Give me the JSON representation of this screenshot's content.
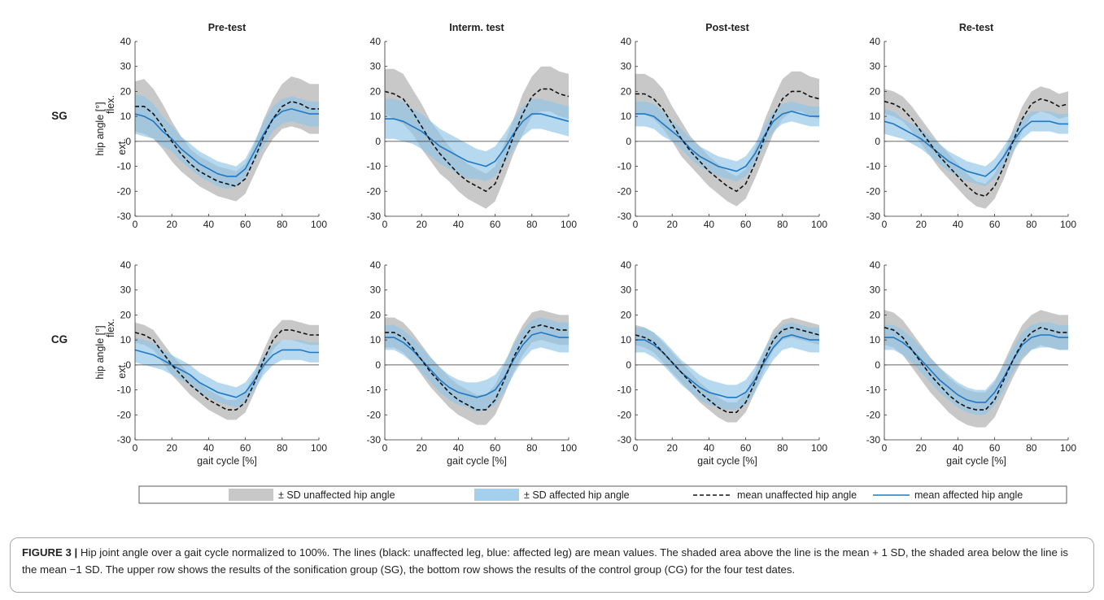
{
  "figure": {
    "caption_label": "FIGURE 3 |",
    "caption_text": "Hip joint angle over a gait cycle normalized to 100%. The lines (black: unaffected leg, blue: affected leg) are mean values. The shaded area above the line is the mean + 1 SD, the shaded area below the line is the mean −1 SD. The upper row shows the results of the sonification group (SG), the bottom row shows the results of the control group (CG) for the four test dates."
  },
  "colors": {
    "unaffected_band": "#c8c8c8",
    "affected_band": "#8fc4e8",
    "overlap_band": "#5a89ad",
    "mean_unaffected": "#111111",
    "mean_affected": "#1f78c4"
  },
  "chart_data": {
    "type": "line",
    "x": [
      0,
      5,
      10,
      15,
      20,
      25,
      30,
      35,
      40,
      45,
      50,
      55,
      60,
      65,
      70,
      75,
      80,
      85,
      90,
      95,
      100
    ],
    "xlim": [
      0,
      100
    ],
    "ylim": [
      -30,
      40
    ],
    "xticks": [
      "0",
      "20",
      "40",
      "60",
      "80",
      "100"
    ],
    "yticks": [
      "40",
      "30",
      "20",
      "10",
      "0",
      "-10",
      "-20",
      "-30"
    ],
    "xlabel": "gait cycle [%]",
    "ylabel": "hip angle [°]",
    "ylabel_flex": "flex.",
    "ylabel_ext": "ext.",
    "columns": [
      "Pre-test",
      "Interm. test",
      "Post-test",
      "Re-test"
    ],
    "rows": [
      "SG",
      "CG"
    ],
    "legend": {
      "placement": "bottom",
      "items": [
        "± SD unaffected hip angle",
        "± SD affected hip angle",
        "mean unaffected hip angle",
        "mean affected hip angle"
      ]
    },
    "panels": [
      {
        "row": "SG",
        "test": "Pre-test",
        "unaffected_mean": [
          14,
          14,
          11,
          6,
          0,
          -5,
          -9,
          -12,
          -14,
          -16,
          -17,
          -18,
          -15,
          -7,
          2,
          9,
          14,
          16,
          15,
          13,
          13
        ],
        "unaffected_sd": [
          10,
          11,
          10,
          9,
          8,
          7,
          6,
          6,
          6,
          6,
          6,
          6,
          6,
          6,
          7,
          8,
          9,
          10,
          10,
          10,
          10
        ],
        "affected_mean": [
          11,
          10,
          8,
          4,
          1,
          -3,
          -6,
          -9,
          -11,
          -13,
          -14,
          -14,
          -11,
          -4,
          3,
          9,
          12,
          13,
          12,
          11,
          11
        ],
        "affected_sd": [
          8,
          8,
          7,
          6,
          5,
          5,
          5,
          5,
          5,
          5,
          5,
          4,
          4,
          4,
          5,
          5,
          5,
          5,
          5,
          5,
          5
        ]
      },
      {
        "row": "SG",
        "test": "Interm. test",
        "unaffected_mean": [
          20,
          19,
          17,
          12,
          6,
          0,
          -5,
          -9,
          -13,
          -16,
          -18,
          -20,
          -17,
          -8,
          2,
          11,
          18,
          21,
          21,
          19,
          18
        ],
        "unaffected_sd": [
          9,
          10,
          10,
          9,
          9,
          8,
          8,
          7,
          7,
          7,
          7,
          7,
          7,
          7,
          7,
          8,
          8,
          9,
          9,
          9,
          9
        ],
        "affected_mean": [
          9,
          9,
          8,
          6,
          4,
          1,
          -2,
          -4,
          -6,
          -8,
          -9,
          -10,
          -8,
          -3,
          3,
          8,
          11,
          11,
          10,
          9,
          8
        ],
        "affected_sd": [
          8,
          8,
          8,
          7,
          7,
          7,
          7,
          7,
          7,
          7,
          6,
          6,
          6,
          6,
          6,
          6,
          6,
          6,
          6,
          6,
          6
        ]
      },
      {
        "row": "SG",
        "test": "Post-test",
        "unaffected_mean": [
          19,
          19,
          17,
          13,
          7,
          1,
          -4,
          -8,
          -12,
          -15,
          -18,
          -20,
          -17,
          -9,
          1,
          10,
          17,
          20,
          20,
          18,
          17
        ],
        "unaffected_sd": [
          8,
          8,
          8,
          8,
          7,
          7,
          6,
          6,
          6,
          6,
          6,
          6,
          6,
          6,
          7,
          7,
          8,
          8,
          8,
          8,
          8
        ],
        "affected_mean": [
          11,
          11,
          10,
          7,
          4,
          1,
          -3,
          -6,
          -8,
          -10,
          -11,
          -12,
          -10,
          -5,
          2,
          8,
          11,
          12,
          11,
          10,
          10
        ],
        "affected_sd": [
          5,
          5,
          5,
          5,
          4,
          4,
          4,
          4,
          4,
          4,
          4,
          4,
          4,
          4,
          4,
          4,
          4,
          4,
          4,
          4,
          4
        ]
      },
      {
        "row": "SG",
        "test": "Re-test",
        "unaffected_mean": [
          16,
          15,
          13,
          9,
          4,
          -1,
          -6,
          -10,
          -14,
          -18,
          -21,
          -22,
          -18,
          -10,
          0,
          9,
          15,
          17,
          16,
          14,
          15
        ],
        "unaffected_sd": [
          5,
          5,
          5,
          5,
          5,
          5,
          5,
          5,
          5,
          5,
          5,
          5,
          5,
          5,
          5,
          5,
          5,
          5,
          5,
          5,
          5
        ],
        "affected_mean": [
          8,
          7,
          5,
          3,
          1,
          -2,
          -5,
          -8,
          -10,
          -12,
          -13,
          -14,
          -11,
          -6,
          0,
          5,
          8,
          8,
          8,
          7,
          7
        ],
        "affected_sd": [
          5,
          5,
          4,
          4,
          4,
          4,
          4,
          4,
          4,
          4,
          4,
          4,
          4,
          4,
          4,
          4,
          4,
          4,
          4,
          4,
          4
        ]
      },
      {
        "row": "CG",
        "test": "Pre-test",
        "unaffected_mean": [
          13,
          12,
          10,
          5,
          0,
          -4,
          -8,
          -11,
          -14,
          -16,
          -18,
          -18,
          -15,
          -7,
          2,
          10,
          14,
          14,
          13,
          12,
          12
        ],
        "unaffected_sd": [
          4,
          4,
          4,
          4,
          4,
          4,
          4,
          4,
          4,
          4,
          4,
          4,
          4,
          4,
          4,
          4,
          4,
          4,
          4,
          4,
          4
        ],
        "affected_mean": [
          6,
          5,
          4,
          2,
          0,
          -2,
          -4,
          -7,
          -9,
          -11,
          -12,
          -13,
          -11,
          -6,
          0,
          4,
          6,
          6,
          6,
          5,
          5
        ],
        "affected_sd": [
          5,
          5,
          5,
          4,
          4,
          4,
          4,
          4,
          4,
          4,
          4,
          4,
          4,
          4,
          4,
          4,
          4,
          4,
          4,
          4,
          4
        ]
      },
      {
        "row": "CG",
        "test": "Interm. test",
        "unaffected_mean": [
          13,
          13,
          11,
          7,
          2,
          -3,
          -7,
          -11,
          -14,
          -16,
          -18,
          -18,
          -14,
          -6,
          3,
          10,
          15,
          16,
          15,
          14,
          14
        ],
        "unaffected_sd": [
          6,
          6,
          6,
          6,
          6,
          6,
          6,
          6,
          6,
          6,
          6,
          6,
          6,
          6,
          6,
          6,
          6,
          6,
          6,
          6,
          6
        ],
        "affected_mean": [
          11,
          11,
          9,
          6,
          2,
          -2,
          -6,
          -9,
          -11,
          -12,
          -13,
          -12,
          -10,
          -5,
          2,
          8,
          12,
          13,
          12,
          11,
          11
        ],
        "affected_sd": [
          5,
          5,
          5,
          5,
          5,
          5,
          5,
          5,
          5,
          5,
          6,
          6,
          6,
          6,
          6,
          6,
          6,
          6,
          6,
          6,
          6
        ]
      },
      {
        "row": "CG",
        "test": "Post-test",
        "unaffected_mean": [
          12,
          11,
          9,
          5,
          1,
          -3,
          -7,
          -11,
          -14,
          -17,
          -19,
          -19,
          -15,
          -7,
          2,
          10,
          14,
          15,
          14,
          13,
          12
        ],
        "unaffected_sd": [
          4,
          4,
          4,
          4,
          4,
          4,
          4,
          4,
          4,
          4,
          4,
          4,
          4,
          4,
          4,
          4,
          4,
          4,
          4,
          4,
          4
        ],
        "affected_mean": [
          10,
          10,
          8,
          5,
          1,
          -3,
          -6,
          -9,
          -11,
          -12,
          -13,
          -13,
          -11,
          -6,
          1,
          7,
          11,
          12,
          11,
          10,
          10
        ],
        "affected_sd": [
          5,
          5,
          5,
          5,
          5,
          5,
          5,
          5,
          5,
          5,
          5,
          5,
          5,
          5,
          5,
          5,
          5,
          5,
          5,
          5,
          5
        ]
      },
      {
        "row": "CG",
        "test": "Re-test",
        "unaffected_mean": [
          15,
          14,
          11,
          6,
          1,
          -4,
          -8,
          -12,
          -15,
          -17,
          -18,
          -18,
          -14,
          -6,
          2,
          9,
          13,
          15,
          14,
          13,
          13
        ],
        "unaffected_sd": [
          7,
          7,
          7,
          7,
          7,
          7,
          7,
          7,
          7,
          7,
          7,
          7,
          7,
          7,
          7,
          7,
          7,
          7,
          7,
          7,
          7
        ],
        "affected_mean": [
          11,
          11,
          9,
          6,
          2,
          -2,
          -6,
          -9,
          -12,
          -14,
          -15,
          -15,
          -11,
          -5,
          2,
          8,
          11,
          12,
          12,
          11,
          11
        ],
        "affected_sd": [
          5,
          5,
          5,
          5,
          5,
          5,
          5,
          5,
          5,
          5,
          5,
          5,
          5,
          5,
          5,
          5,
          5,
          5,
          5,
          5,
          5
        ]
      }
    ]
  }
}
